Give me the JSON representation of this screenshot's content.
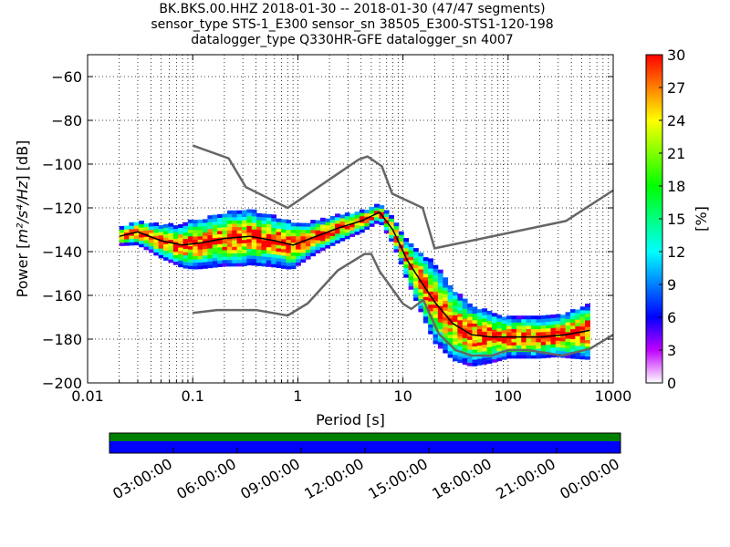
{
  "title_lines": [
    "BK.BKS.00.HHZ   2018-01-30 -- 2018-01-30  (47/47 segments)",
    "sensor_type STS-1_E300 sensor_sn 38505_E300-STS1-120-198",
    "datalogger_type Q330HR-GFE datalogger_sn 4007"
  ],
  "chart_data": [
    {
      "type": "heatmap",
      "name": "ppsd",
      "xlabel": "Period [s]",
      "ylabel_prefix": "Power [",
      "ylabel_units": "m²/s⁴/Hz",
      "ylabel_suffix": "] [dB]",
      "xscale": "log",
      "xlim": [
        0.01,
        1000
      ],
      "ylim": [
        -200,
        -50
      ],
      "x_ticks": [
        0.01,
        0.1,
        1,
        10,
        100,
        1000
      ],
      "x_tick_labels": [
        "0.01",
        "0.1",
        "1",
        "10",
        "100",
        "1000"
      ],
      "y_ticks": [
        -200,
        -180,
        -160,
        -140,
        -120,
        -100,
        -80,
        -60
      ],
      "y_tick_labels": [
        "−200",
        "−180",
        "−160",
        "−140",
        "−120",
        "−100",
        "−80",
        "−60"
      ],
      "grid": true,
      "colorbar": {
        "label": "[%]",
        "range": [
          0,
          30
        ],
        "ticks": [
          0,
          3,
          6,
          9,
          12,
          15,
          18,
          21,
          24,
          27,
          30
        ],
        "tick_labels": [
          "0",
          "3",
          "6",
          "9",
          "12",
          "15",
          "18",
          "21",
          "24",
          "27",
          "30"
        ]
      },
      "ridge_curve": [
        [
          0.02,
          -133
        ],
        [
          0.03,
          -131
        ],
        [
          0.05,
          -135
        ],
        [
          0.08,
          -137
        ],
        [
          0.12,
          -136
        ],
        [
          0.2,
          -134
        ],
        [
          0.35,
          -133
        ],
        [
          0.6,
          -135
        ],
        [
          0.9,
          -137
        ],
        [
          1.5,
          -133
        ],
        [
          2.5,
          -129
        ],
        [
          4,
          -126
        ],
        [
          6,
          -122
        ],
        [
          8,
          -130
        ],
        [
          11,
          -144
        ],
        [
          15,
          -154
        ],
        [
          20,
          -163
        ],
        [
          30,
          -173
        ],
        [
          45,
          -178
        ],
        [
          70,
          -179
        ],
        [
          120,
          -179
        ],
        [
          200,
          -179
        ],
        [
          350,
          -178
        ],
        [
          600,
          -176
        ]
      ],
      "spread": [
        [
          0.02,
          2
        ],
        [
          0.05,
          4
        ],
        [
          0.1,
          6
        ],
        [
          0.3,
          7
        ],
        [
          0.8,
          6
        ],
        [
          1.5,
          4
        ],
        [
          3,
          3
        ],
        [
          6,
          2
        ],
        [
          10,
          4
        ],
        [
          20,
          10
        ],
        [
          40,
          8
        ],
        [
          100,
          5
        ],
        [
          300,
          5
        ],
        [
          600,
          7
        ]
      ],
      "noise_models": [
        {
          "name": "high",
          "points": [
            [
              0.1,
              -91.5
            ],
            [
              0.22,
              -97.4
            ],
            [
              0.32,
              -110.5
            ],
            [
              0.8,
              -120
            ],
            [
              3.8,
              -97.9
            ],
            [
              4.6,
              -96.5
            ],
            [
              6.3,
              -101
            ],
            [
              7.9,
              -113.5
            ],
            [
              15.4,
              -120
            ],
            [
              20,
              -138.5
            ],
            [
              354.8,
              -126
            ],
            [
              1000,
              -112
            ]
          ]
        },
        {
          "name": "low",
          "points": [
            [
              0.1,
              -168
            ],
            [
              0.17,
              -166.7
            ],
            [
              0.4,
              -166.7
            ],
            [
              0.8,
              -169.2
            ],
            [
              1.24,
              -163.7
            ],
            [
              2.4,
              -148.6
            ],
            [
              4.3,
              -141.1
            ],
            [
              5,
              -141.1
            ],
            [
              6,
              -149
            ],
            [
              10,
              -163.8
            ],
            [
              12,
              -166.2
            ],
            [
              15.6,
              -162.1
            ],
            [
              21.9,
              -177.5
            ],
            [
              31.6,
              -185
            ],
            [
              45,
              -187.5
            ],
            [
              70,
              -187.5
            ],
            [
              101,
              -185
            ],
            [
              154,
              -185
            ],
            [
              328,
              -187.5
            ],
            [
              600,
              -184.4
            ],
            [
              1000,
              -178
            ]
          ]
        }
      ]
    },
    {
      "type": "bar",
      "name": "data-availability",
      "tick_labels": [
        "03:00:00",
        "06:00:00",
        "09:00:00",
        "12:00:00",
        "15:00:00",
        "18:00:00",
        "21:00:00",
        "00:00:00"
      ],
      "colors": {
        "coverage": "#0000ff",
        "top_band": "#008000"
      }
    }
  ],
  "colors": {
    "noise_model": "#666666",
    "ridge": "#000000",
    "grid": "#000000"
  }
}
